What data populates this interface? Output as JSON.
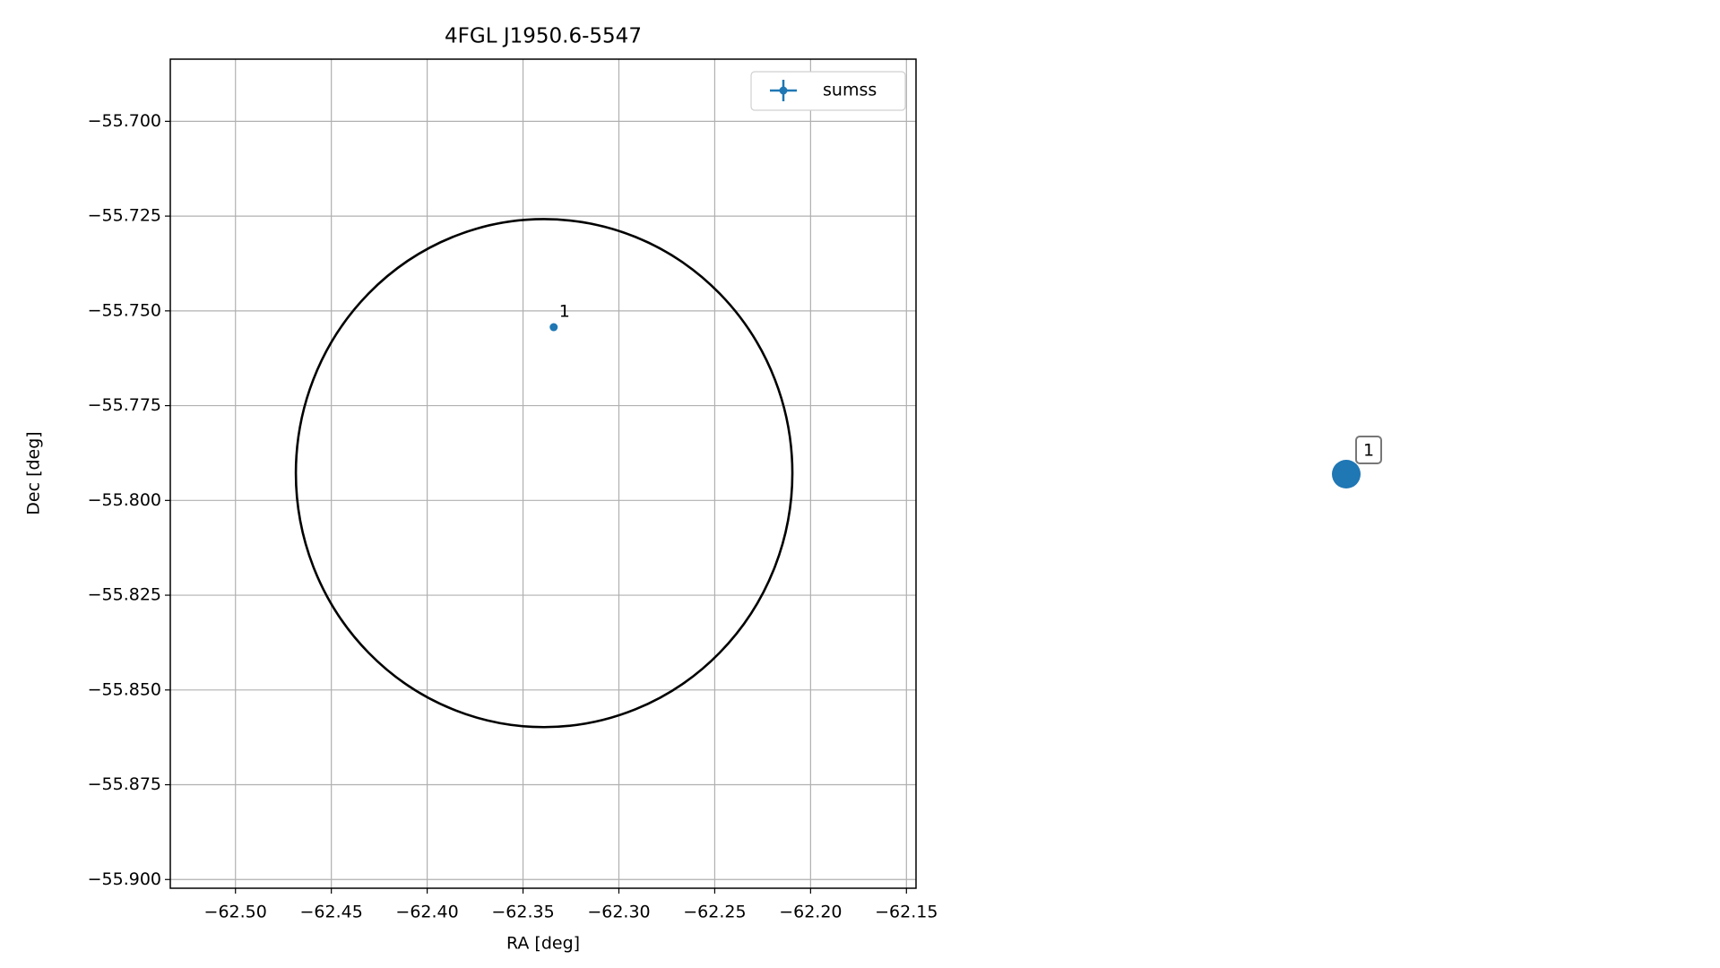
{
  "chart_data": [
    {
      "type": "scatter",
      "title": "4FGL J1950.6-5547",
      "xlabel": "RA [deg]",
      "ylabel": "Dec [deg]",
      "series": [
        {
          "name": "sumss",
          "color": "#1f77b4",
          "x": [
            -62.334
          ],
          "values": [
            -55.7543
          ],
          "point_labels": [
            "1"
          ]
        }
      ],
      "region": {
        "center_x": -62.339,
        "center_y": -55.7928,
        "radius_x": 0.1295,
        "radius_y": 0.067,
        "color": "#000000"
      },
      "xlim": [
        -62.534,
        -62.145
      ],
      "ylim": [
        -55.9023,
        -55.6836
      ],
      "xticks": [
        {
          "value": -62.5,
          "label": "−62.50"
        },
        {
          "value": -62.45,
          "label": "−62.45"
        },
        {
          "value": -62.4,
          "label": "−62.40"
        },
        {
          "value": -62.35,
          "label": "−62.35"
        },
        {
          "value": -62.3,
          "label": "−62.30"
        },
        {
          "value": -62.25,
          "label": "−62.25"
        },
        {
          "value": -62.2,
          "label": "−62.20"
        },
        {
          "value": -62.15,
          "label": "−62.15"
        }
      ],
      "yticks": [
        {
          "value": -55.7,
          "label": "−55.700"
        },
        {
          "value": -55.725,
          "label": "−55.725"
        },
        {
          "value": -55.75,
          "label": "−55.750"
        },
        {
          "value": -55.775,
          "label": "−55.775"
        },
        {
          "value": -55.8,
          "label": "−55.800"
        },
        {
          "value": -55.825,
          "label": "−55.825"
        },
        {
          "value": -55.85,
          "label": "−55.850"
        },
        {
          "value": -55.875,
          "label": "−55.875"
        },
        {
          "value": -55.9,
          "label": "−55.900"
        }
      ],
      "grid": true,
      "legend": "upper right"
    },
    {
      "type": "marker",
      "labels": [
        "1"
      ],
      "color": "#1f77b4"
    }
  ]
}
